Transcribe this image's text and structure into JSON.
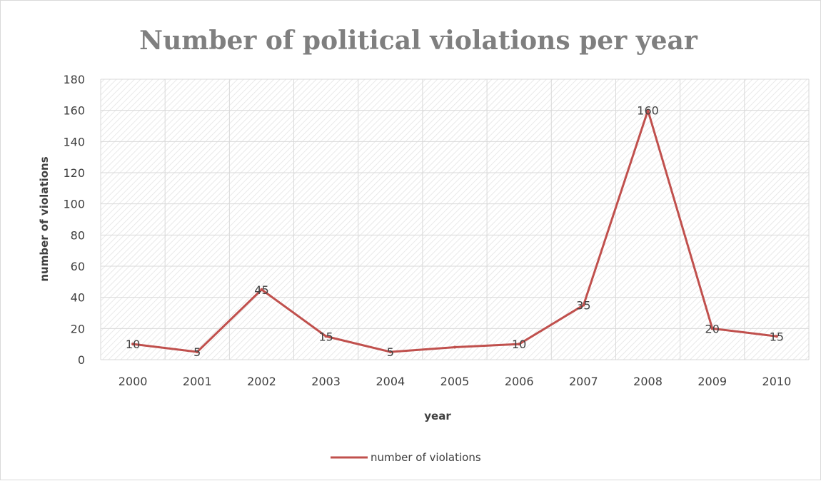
{
  "chart_data": {
    "type": "line",
    "title": "Number of political violations per year",
    "xlabel": "year",
    "ylabel": "number of violations",
    "categories": [
      "2000",
      "2001",
      "2002",
      "2003",
      "2004",
      "2005",
      "2006",
      "2007",
      "2008",
      "2009",
      "2010"
    ],
    "series": [
      {
        "name": "number of violations",
        "values": [
          10,
          5,
          45,
          15,
          5,
          8,
          10,
          35,
          160,
          20,
          15
        ],
        "labels": [
          "10",
          "5",
          "45",
          "15",
          "5",
          "",
          "10",
          "35",
          "160",
          "20",
          "15"
        ],
        "color": "#c0504d"
      }
    ],
    "ylim": [
      0,
      180
    ],
    "yticks": [
      "0",
      "20",
      "40",
      "60",
      "80",
      "100",
      "120",
      "140",
      "160",
      "180"
    ],
    "grid": true,
    "legend_position": "bottom"
  }
}
